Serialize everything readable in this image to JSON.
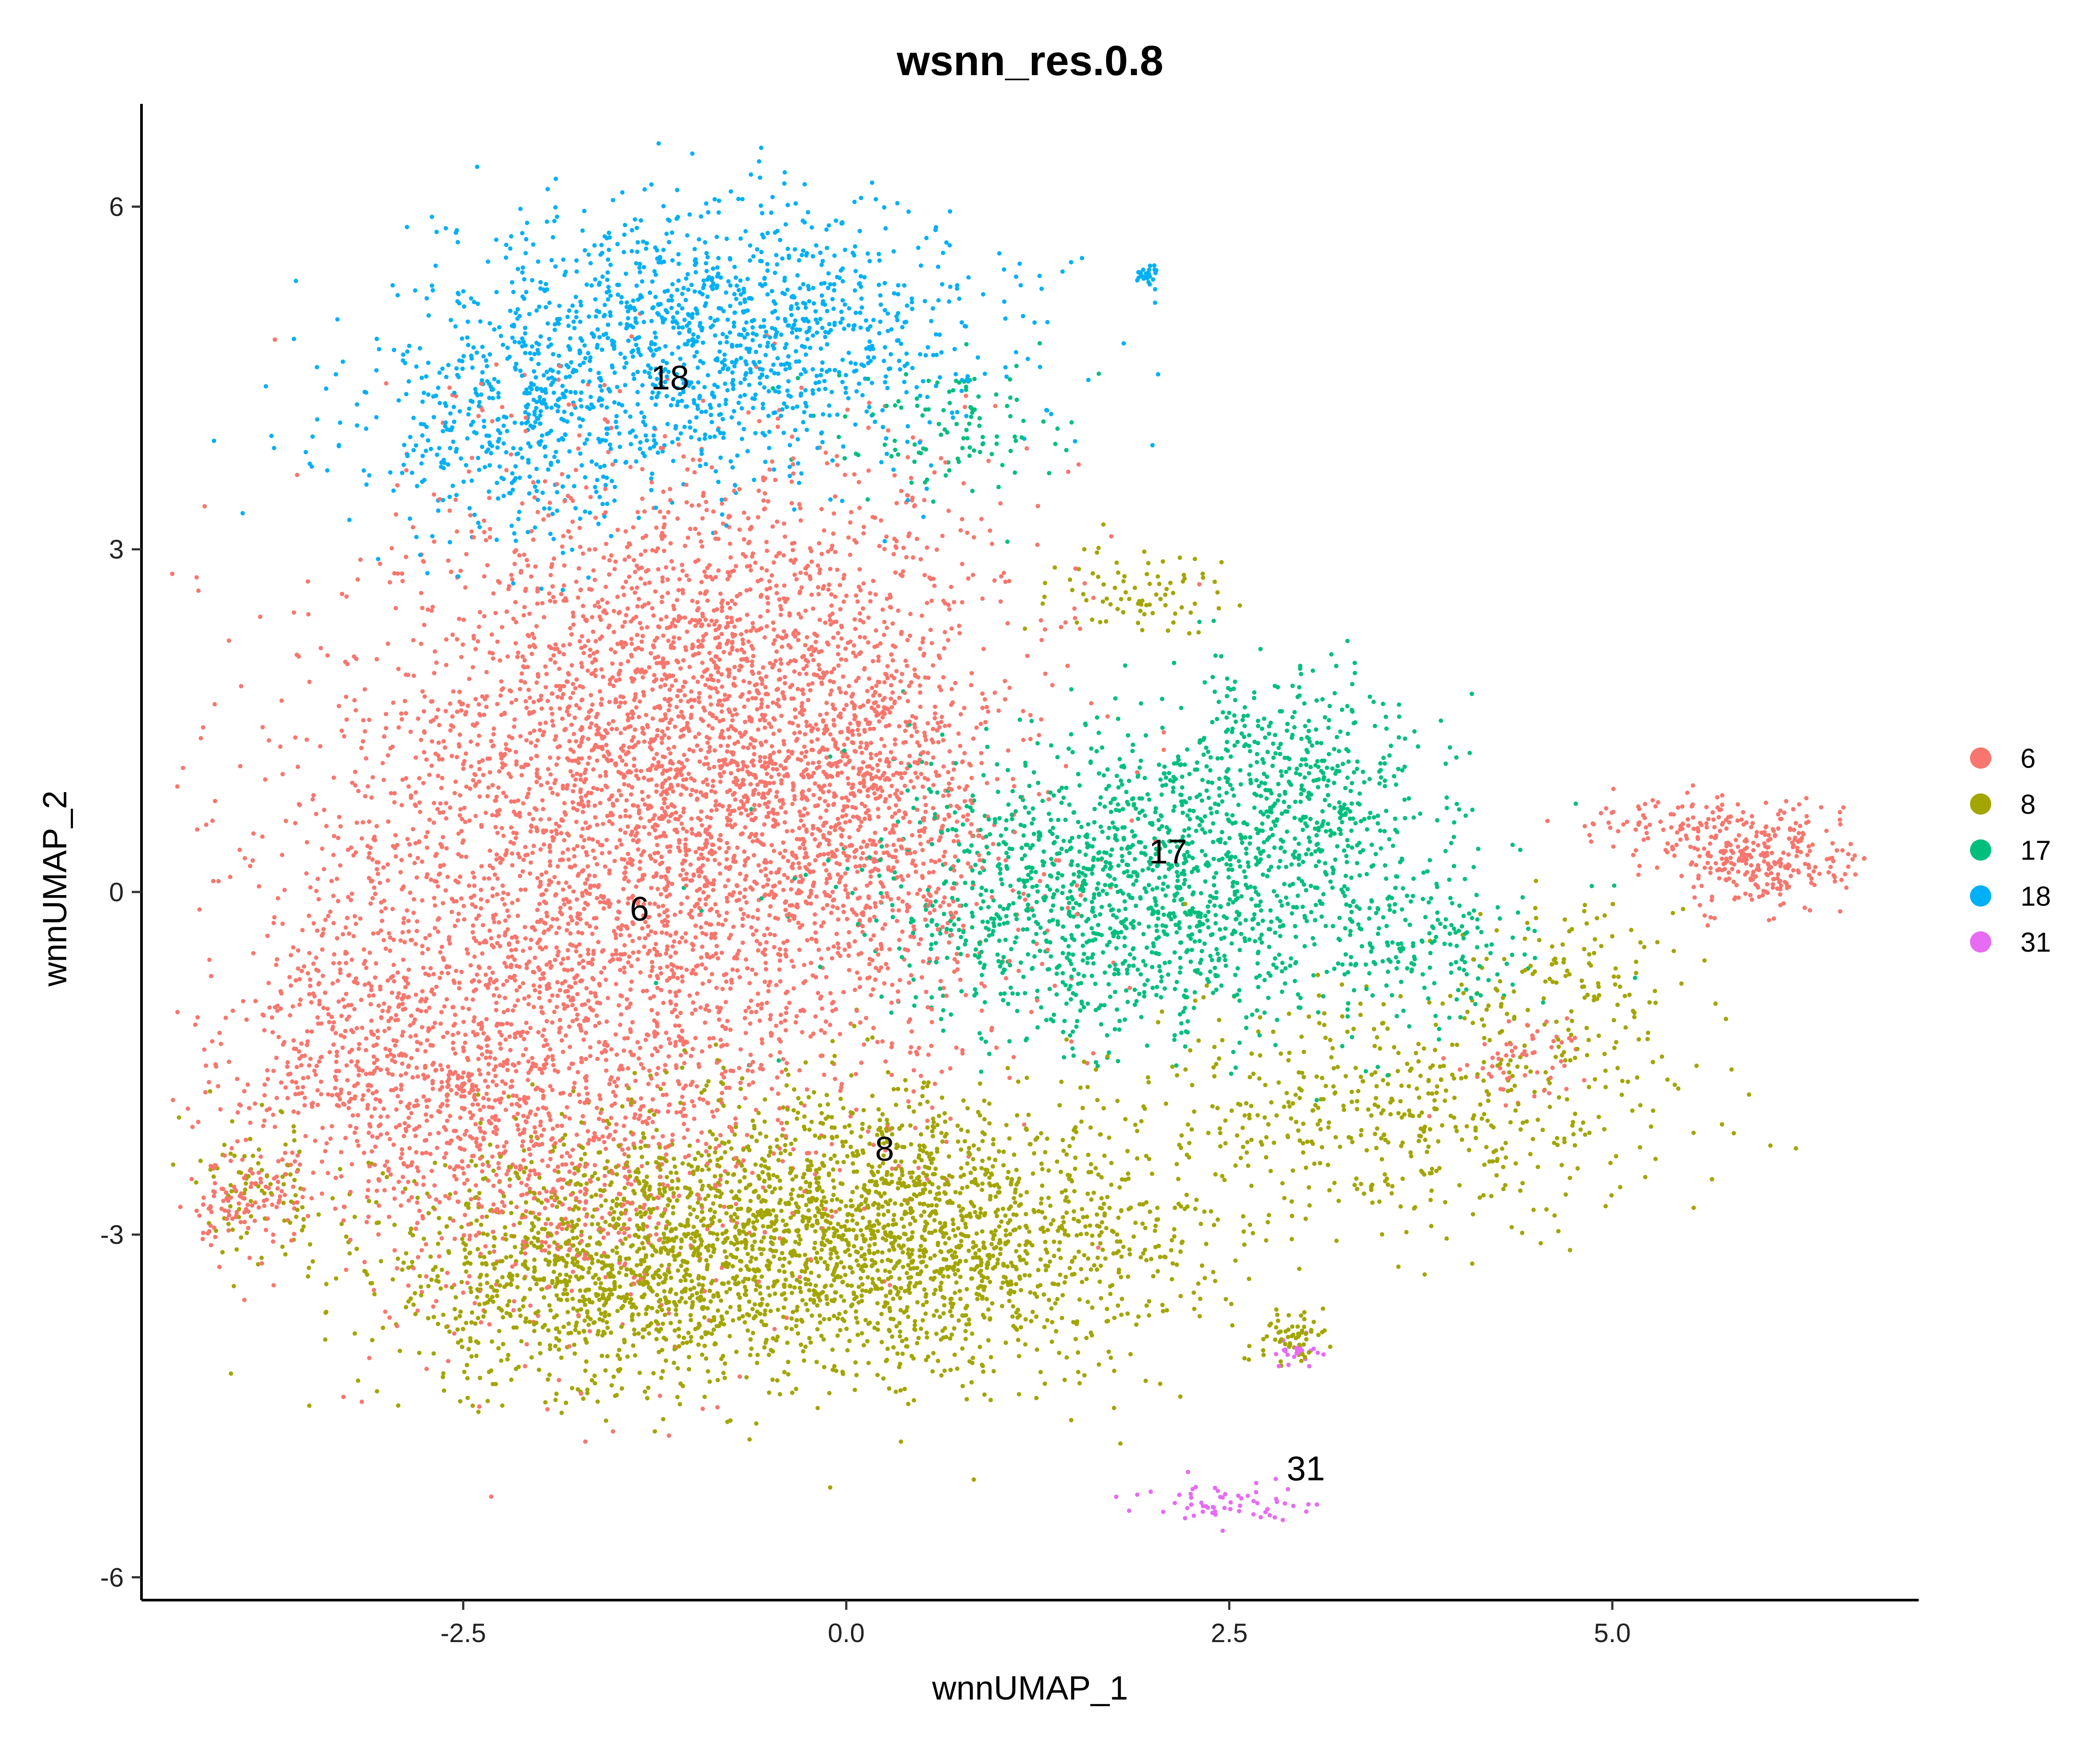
{
  "chart_data": {
    "type": "scatter",
    "title": "wsnn_res.0.8",
    "xlabel": "wnnUMAP_1",
    "ylabel": "wnnUMAP_2",
    "xlim": [
      -4.6,
      7.0
    ],
    "ylim": [
      -6.2,
      6.9
    ],
    "x_ticks": [
      -2.5,
      0.0,
      2.5,
      5.0
    ],
    "x_tick_labels": [
      "-2.5",
      "0.0",
      "2.5",
      "5.0"
    ],
    "y_ticks": [
      -6,
      -3,
      0,
      3,
      6
    ],
    "y_tick_labels": [
      "-6",
      "-3",
      "0",
      "3",
      "6"
    ],
    "grid": false,
    "legend_position": "right",
    "series": [
      {
        "name": "6",
        "color": "#F8766D",
        "regions": [
          {
            "cx": -1.4,
            "cy": 0.3,
            "sx": 1.1,
            "sy": 1.6,
            "n": 3600
          },
          {
            "cx": -0.6,
            "cy": 1.8,
            "sx": 0.8,
            "sy": 1.0,
            "n": 1200
          },
          {
            "cx": -3.2,
            "cy": -1.4,
            "sx": 0.45,
            "sy": 0.6,
            "n": 400
          },
          {
            "cx": -2.2,
            "cy": -2.0,
            "sx": 0.6,
            "sy": 0.8,
            "n": 700
          },
          {
            "cx": 0.2,
            "cy": 0.6,
            "sx": 0.4,
            "sy": 0.7,
            "n": 500
          },
          {
            "cx": 6.0,
            "cy": 0.3,
            "sx": 0.3,
            "sy": 0.22,
            "n": 300
          },
          {
            "cx": 5.4,
            "cy": 0.55,
            "sx": 0.3,
            "sy": 0.15,
            "n": 90
          },
          {
            "cx": 4.4,
            "cy": -1.5,
            "sx": 0.2,
            "sy": 0.2,
            "n": 60
          },
          {
            "cx": -3.9,
            "cy": -2.7,
            "sx": 0.2,
            "sy": 0.2,
            "n": 110
          }
        ],
        "counts_note": ""
      },
      {
        "name": "8",
        "color": "#A3A500",
        "regions": [
          {
            "cx": 0.0,
            "cy": -3.0,
            "sx": 1.1,
            "sy": 0.6,
            "n": 2600
          },
          {
            "cx": -1.8,
            "cy": -3.4,
            "sx": 0.7,
            "sy": 0.5,
            "n": 700
          },
          {
            "cx": 3.6,
            "cy": -1.9,
            "sx": 0.9,
            "sy": 0.5,
            "n": 500
          },
          {
            "cx": 1.9,
            "cy": 2.6,
            "sx": 0.3,
            "sy": 0.2,
            "n": 80
          },
          {
            "cx": 4.8,
            "cy": -0.8,
            "sx": 0.4,
            "sy": 0.4,
            "n": 120
          },
          {
            "cx": 2.9,
            "cy": -3.9,
            "sx": 0.15,
            "sy": 0.12,
            "n": 60
          },
          {
            "cx": -3.8,
            "cy": -2.6,
            "sx": 0.3,
            "sy": 0.3,
            "n": 90
          }
        ],
        "counts_note": ""
      },
      {
        "name": "17",
        "color": "#00BF7D",
        "regions": [
          {
            "cx": 1.9,
            "cy": 0.0,
            "sx": 0.9,
            "sy": 0.65,
            "n": 1500
          },
          {
            "cx": 2.9,
            "cy": 1.0,
            "sx": 0.45,
            "sy": 0.45,
            "n": 400
          },
          {
            "cx": 0.7,
            "cy": 4.1,
            "sx": 0.4,
            "sy": 0.3,
            "n": 110
          },
          {
            "cx": 3.8,
            "cy": -0.5,
            "sx": 0.4,
            "sy": 0.3,
            "n": 150
          }
        ],
        "counts_note": ""
      },
      {
        "name": "18",
        "color": "#00B0F6",
        "regions": [
          {
            "cx": -0.8,
            "cy": 4.9,
            "sx": 0.9,
            "sy": 0.6,
            "n": 1300
          },
          {
            "cx": -2.2,
            "cy": 4.0,
            "sx": 0.55,
            "sy": 0.5,
            "n": 400
          },
          {
            "cx": 1.95,
            "cy": 5.4,
            "sx": 0.05,
            "sy": 0.05,
            "n": 25
          }
        ],
        "counts_note": ""
      },
      {
        "name": "31",
        "color": "#E76BF3",
        "regions": [
          {
            "cx": 2.5,
            "cy": -5.35,
            "sx": 0.25,
            "sy": 0.1,
            "n": 60
          },
          {
            "cx": 2.95,
            "cy": -4.05,
            "sx": 0.1,
            "sy": 0.1,
            "n": 25
          }
        ],
        "counts_note": ""
      }
    ],
    "cluster_labels": [
      {
        "text": "18",
        "x": -1.15,
        "y": 4.5
      },
      {
        "text": "17",
        "x": 2.1,
        "y": 0.35
      },
      {
        "text": "6",
        "x": -1.35,
        "y": -0.15
      },
      {
        "text": "8",
        "x": 0.25,
        "y": -2.25
      },
      {
        "text": "31",
        "x": 3.0,
        "y": -5.05
      }
    ]
  }
}
